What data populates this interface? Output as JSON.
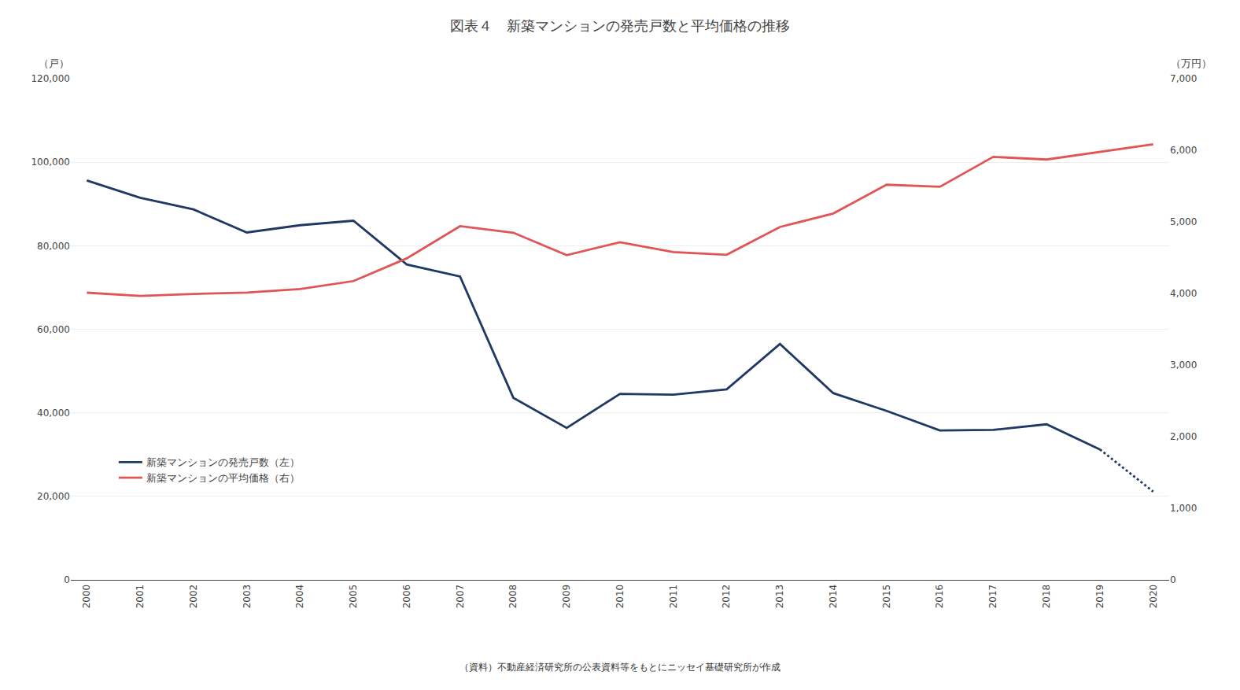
{
  "chart_data": {
    "type": "line",
    "title": "図表４　新築マンションの発売戸数と平均価格の推移",
    "x": [
      2000,
      2001,
      2002,
      2003,
      2004,
      2005,
      2006,
      2007,
      2008,
      2009,
      2010,
      2011,
      2012,
      2013,
      2014,
      2015,
      2016,
      2017,
      2018,
      2019,
      2020
    ],
    "series": [
      {
        "name": "新築マンションの発売戸数（左）",
        "color": "#1f3864",
        "line_style": "solid",
        "values": [
          95635,
          91494,
          88699,
          83183,
          84914,
          85990,
          75523,
          72642,
          43581,
          36376,
          44535,
          44345,
          45602,
          56478,
          44704,
          40449,
          35772,
          35898,
          37254,
          31238,
          null
        ]
      },
      {
        "color": "#1f3864",
        "line_style": "dotted",
        "values": [
          null,
          null,
          null,
          null,
          null,
          null,
          null,
          null,
          null,
          null,
          null,
          null,
          null,
          null,
          null,
          null,
          null,
          null,
          null,
          31238,
          21139
        ]
      },
      {
        "name": "新築マンションの平均価格（右）",
        "color": "#e05555",
        "line_style": "solid",
        "axis": "y2",
        "values": [
          4011,
          3966,
          3994,
          4012,
          4062,
          4173,
          4490,
          4940,
          4848,
          4535,
          4716,
          4578,
          4540,
          4929,
          5117,
          5519,
          5490,
          5908,
          5871,
          5980,
          6083
        ]
      }
    ],
    "xlim": [
      1999.7,
      2020.3
    ],
    "xticks": [
      2000,
      2001,
      2002,
      2003,
      2004,
      2005,
      2006,
      2007,
      2008,
      2009,
      2010,
      2011,
      2012,
      2013,
      2014,
      2015,
      2016,
      2017,
      2018,
      2019,
      2020
    ],
    "ylim": [
      0,
      120000
    ],
    "yticks": [
      0,
      {
        "value": 20000,
        "label": "20,000"
      },
      {
        "value": 40000,
        "label": "40,000"
      },
      {
        "value": 60000,
        "label": "60,000"
      },
      {
        "value": 80000,
        "label": "80,000"
      },
      {
        "value": 100000,
        "label": "100,000"
      },
      {
        "value": 120000,
        "label": "120,000"
      }
    ],
    "y2lim": [
      0,
      7000
    ],
    "y2ticks": [
      0,
      {
        "value": 1000,
        "label": "1,000"
      },
      {
        "value": 2000,
        "label": "2,000"
      },
      {
        "value": 3000,
        "label": "3,000"
      },
      {
        "value": 4000,
        "label": "4,000"
      },
      {
        "value": 5000,
        "label": "5,000"
      },
      {
        "value": 6000,
        "label": "6,000"
      },
      {
        "value": 7000,
        "label": "7,000"
      }
    ],
    "ylabel": "（戸）",
    "y2label": "（万円）",
    "annotations": [
      "（資料）不動産経済研究所の公表資料等をもとにニッセイ基礎研究所が作成"
    ],
    "grid": true,
    "legend": "lower left"
  }
}
